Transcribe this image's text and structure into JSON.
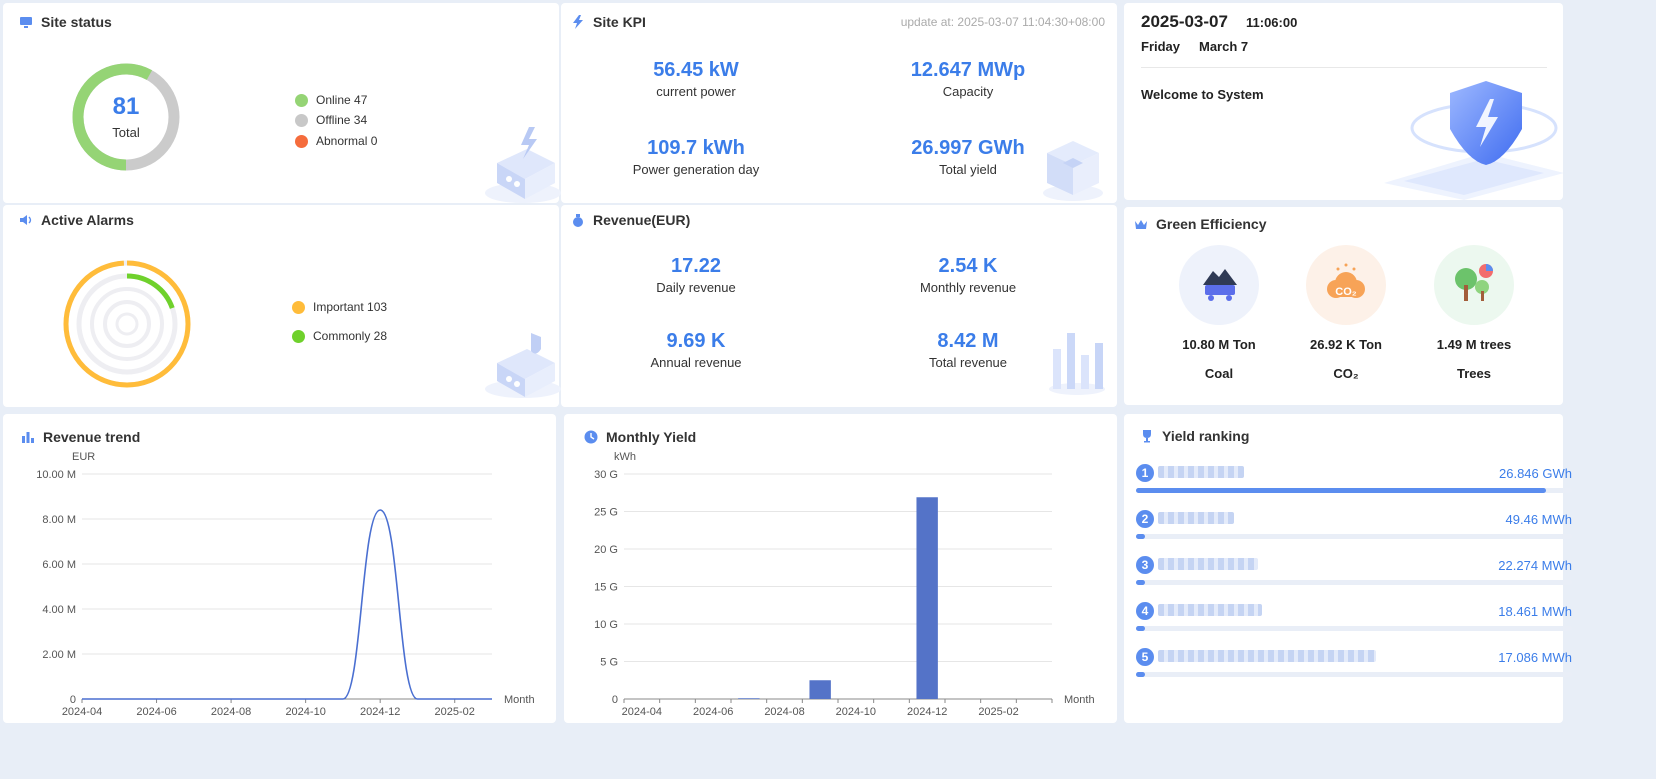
{
  "site_status": {
    "title": "Site status",
    "total_value": "81",
    "total_label": "Total",
    "legend": [
      {
        "label": "Online 47",
        "color": "#95d475"
      },
      {
        "label": "Offline 34",
        "color": "#c8c8c8"
      },
      {
        "label": "Abnormal 0",
        "color": "#f56c3c"
      }
    ]
  },
  "site_kpi": {
    "title": "Site KPI",
    "update": "update at: 2025-03-07 11:04:30+08:00",
    "items": [
      {
        "value": "56.45 kW",
        "label": "current power"
      },
      {
        "value": "12.647 MWp",
        "label": "Capacity"
      },
      {
        "value": "109.7 kWh",
        "label": "Power generation day"
      },
      {
        "value": "26.997 GWh",
        "label": "Total yield"
      }
    ]
  },
  "active_alarms": {
    "title": "Active Alarms",
    "legend": [
      {
        "label": "Important 103",
        "color": "#ffbc3a"
      },
      {
        "label": "Commonly 28",
        "color": "#6fd12c"
      }
    ]
  },
  "revenue": {
    "title": "Revenue(EUR)",
    "items": [
      {
        "value": "17.22",
        "label": "Daily revenue"
      },
      {
        "value": "2.54 K",
        "label": "Monthly revenue"
      },
      {
        "value": "9.69 K",
        "label": "Annual revenue"
      },
      {
        "value": "8.42 M",
        "label": "Total revenue"
      }
    ]
  },
  "welcome": {
    "date": "2025-03-07",
    "time": "11:06:00",
    "weekday": "Friday",
    "month_day": "March 7",
    "message": "Welcome to System"
  },
  "green": {
    "title": "Green Efficiency",
    "items": [
      {
        "value": "10.80 M Ton",
        "label": "Coal",
        "icon": "coal-icon"
      },
      {
        "value": "26.92 K Ton",
        "label": "CO₂",
        "icon": "co2-icon"
      },
      {
        "value": "1.49 M trees",
        "label": "Trees",
        "icon": "trees-icon"
      }
    ]
  },
  "revenue_trend": {
    "title": "Revenue trend",
    "chart_data": {
      "type": "line",
      "ylabel": "EUR",
      "xlabel": "Month",
      "ylim": [
        0,
        10000000
      ],
      "yticks": [
        "0",
        "2.00 M",
        "4.00 M",
        "6.00 M",
        "8.00 M",
        "10.00 M"
      ],
      "xticks": [
        "2024-04",
        "2024-06",
        "2024-08",
        "2024-10",
        "2024-12",
        "2025-02"
      ],
      "x": [
        "2024-04",
        "2024-05",
        "2024-06",
        "2024-07",
        "2024-08",
        "2024-09",
        "2024-10",
        "2024-11",
        "2024-12",
        "2025-01",
        "2025-02",
        "2025-03"
      ],
      "series": [
        {
          "values": [
            0,
            0,
            0,
            0,
            0,
            0,
            0,
            0,
            8400000,
            0,
            0,
            0
          ],
          "color": "#4a6fd1"
        }
      ]
    }
  },
  "monthly_yield": {
    "title": "Monthly Yield",
    "chart_data": {
      "type": "bar",
      "ylabel": "kWh",
      "xlabel": "Month",
      "ylim": [
        0,
        30000000000
      ],
      "yticks": [
        "0",
        "5 G",
        "10 G",
        "15 G",
        "20 G",
        "25 G",
        "30 G"
      ],
      "xticks": [
        "2024-04",
        "2024-06",
        "2024-08",
        "2024-10",
        "2024-12",
        "2025-02"
      ],
      "categories": [
        "2024-04",
        "2024-05",
        "2024-06",
        "2024-07",
        "2024-08",
        "2024-09",
        "2024-10",
        "2024-11",
        "2024-12",
        "2025-01",
        "2025-02",
        "2025-03"
      ],
      "series": [
        {
          "values": [
            0,
            0,
            0,
            100000000.0,
            0,
            2500000000.0,
            0,
            0,
            26900000000.0,
            0,
            0,
            0
          ],
          "color": "#5473c8"
        }
      ]
    }
  },
  "ranking": {
    "title": "Yield ranking",
    "items": [
      {
        "rank": "1",
        "value": "26.846 GWh",
        "share": 0.94
      },
      {
        "rank": "2",
        "value": "49.46 MWh",
        "share": 0.015
      },
      {
        "rank": "3",
        "value": "22.274 MWh",
        "share": 0.015
      },
      {
        "rank": "4",
        "value": "18.461 MWh",
        "share": 0.015
      },
      {
        "rank": "5",
        "value": "17.086 MWh",
        "share": 0.015
      }
    ]
  }
}
